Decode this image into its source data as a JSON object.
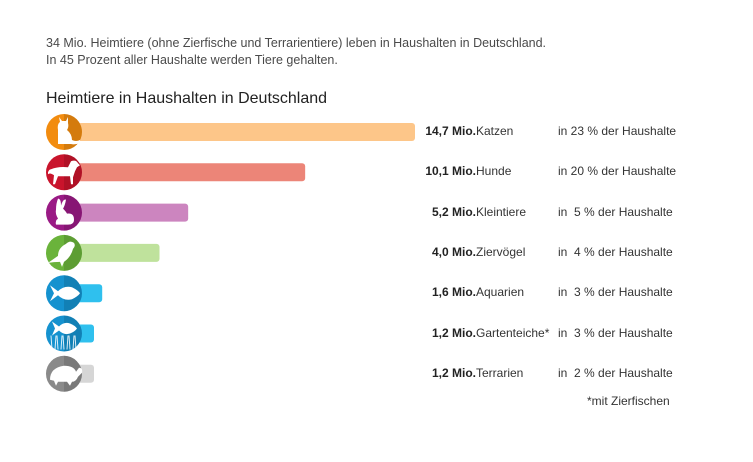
{
  "intro": {
    "line1": "34 Mio. Heimtiere (ohne Zierfische und Terrarientiere) leben in Haushalten in Deutschland.",
    "line2": "In 45 Prozent aller Haushalte werden Tiere gehalten."
  },
  "chart_data": {
    "type": "bar",
    "orientation": "horizontal",
    "title": "Heimtiere in Haushalten in Deutschland",
    "unit": "Mio.",
    "xlabel": "",
    "ylabel": "",
    "xlim": [
      0,
      14.7
    ],
    "grid": false,
    "legend": "none",
    "categories": [
      "Katzen",
      "Hunde",
      "Kleintiere",
      "Ziervögel",
      "Aquarien",
      "Gartenteiche*",
      "Terrarien"
    ],
    "values": [
      14.7,
      10.1,
      5.2,
      4.0,
      1.6,
      1.2,
      1.2
    ],
    "value_labels": [
      "14,7 Mio.",
      "10,1 Mio.",
      "5,2 Mio.",
      "4,0 Mio.",
      "1,6 Mio.",
      "1,2 Mio.",
      "1,2 Mio."
    ],
    "household_share_percent": [
      23,
      20,
      5,
      4,
      3,
      3,
      2
    ],
    "household_share_labels": [
      "in 23 % der Haushalte",
      "in 20 % der Haushalte",
      "in  5 % der Haushalte",
      "in  4 % der Haushalte",
      "in  3 % der Haushalte",
      "in  3 % der Haushalte",
      "in  2 % der Haushalte"
    ],
    "icons": [
      "cat-icon",
      "dog-icon",
      "rabbit-icon",
      "bird-icon",
      "fish-icon",
      "pond-fish-icon",
      "turtle-icon"
    ],
    "icon_colors": [
      "#f28c0f",
      "#c9142c",
      "#9a1a85",
      "#6ab33b",
      "#1592cf",
      "#1592cf",
      "#8a8a8a"
    ],
    "bar_colors": [
      "#fdc689",
      "#ec8578",
      "#cc85bf",
      "#bfe29c",
      "#2fc0ee",
      "#2fc0ee",
      "#d6d6d6"
    ],
    "footnote": "*mit Zierfischen"
  }
}
